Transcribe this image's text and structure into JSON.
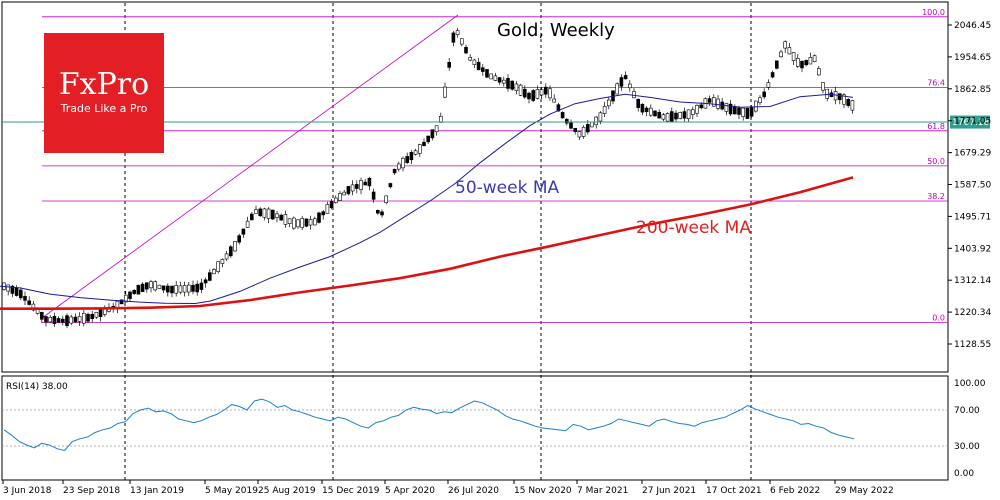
{
  "brand": {
    "name": "FxPro",
    "tagline": "Trade Like a Pro",
    "bg_color": "#e31e24",
    "text_color": "#ffffff"
  },
  "chart_data": {
    "type": "candlestick",
    "title": "Gold, Weekly",
    "x_labels": [
      "3 Jun 2018",
      "23 Sep 2018",
      "13 Jan 2019",
      "5 May 2019",
      "25 Aug 2019",
      "15 Dec 2019",
      "5 Apr 2020",
      "26 Jul 2020",
      "15 Nov 2020",
      "7 Mar 2021",
      "27 Jun 2021",
      "17 Oct 2021",
      "6 Feb 2022",
      "29 May 2022"
    ],
    "price_axis": {
      "ticks": [
        2046.45,
        1954.65,
        1862.85,
        1771.05,
        1679.29,
        1587.5,
        1495.71,
        1403.92,
        1312.14,
        1220.34,
        1128.55
      ],
      "tick_labels": [
        "2046.45",
        "1954.65",
        "1862.85",
        "1771.05",
        "1679.29",
        "1587.50",
        "1495.71",
        "1403.92",
        "1312.14",
        "1220.34",
        "1128.55"
      ],
      "range": [
        1060,
        2105
      ]
    },
    "current_price": {
      "value": 1767.18,
      "label": "1767.18",
      "color": "#2e9e8e"
    },
    "fibonacci": [
      {
        "label": "100.0",
        "value": 2070
      },
      {
        "label": "76.4",
        "value": 1867
      },
      {
        "label": "61.8",
        "value": 1742
      },
      {
        "label": "50.0",
        "value": 1641
      },
      {
        "label": "38.2",
        "value": 1540
      },
      {
        "label": "0.0",
        "value": 1190
      }
    ],
    "fib_color": "#c000c0",
    "annotations": [
      {
        "text": "50-week MA",
        "color": "#3a3ab0"
      },
      {
        "text": "200-week MA",
        "color": "#e02020"
      }
    ],
    "series": [
      {
        "name": "50-week MA",
        "color": "#1a1a9a",
        "points": [
          [
            0,
            1295
          ],
          [
            20,
            1290
          ],
          [
            50,
            1272
          ],
          [
            80,
            1262
          ],
          [
            110,
            1255
          ],
          [
            140,
            1249
          ],
          [
            165,
            1246
          ],
          [
            195,
            1245
          ],
          [
            210,
            1252
          ],
          [
            240,
            1280
          ],
          [
            270,
            1318
          ],
          [
            300,
            1350
          ],
          [
            330,
            1380
          ],
          [
            360,
            1420
          ],
          [
            380,
            1450
          ],
          [
            405,
            1495
          ],
          [
            430,
            1540
          ],
          [
            455,
            1590
          ],
          [
            480,
            1650
          ],
          [
            505,
            1705
          ],
          [
            530,
            1757
          ],
          [
            550,
            1790
          ],
          [
            575,
            1820
          ],
          [
            600,
            1835
          ],
          [
            625,
            1847
          ],
          [
            650,
            1838
          ],
          [
            680,
            1825
          ],
          [
            710,
            1820
          ],
          [
            740,
            1810
          ],
          [
            770,
            1812
          ],
          [
            800,
            1840
          ],
          [
            830,
            1847
          ],
          [
            853,
            1838
          ]
        ]
      },
      {
        "name": "200-week MA",
        "color": "#dd1111",
        "points": [
          [
            0,
            1230
          ],
          [
            50,
            1230
          ],
          [
            100,
            1231
          ],
          [
            150,
            1233
          ],
          [
            200,
            1238
          ],
          [
            250,
            1255
          ],
          [
            300,
            1277
          ],
          [
            350,
            1297
          ],
          [
            400,
            1318
          ],
          [
            450,
            1345
          ],
          [
            500,
            1380
          ],
          [
            550,
            1410
          ],
          [
            600,
            1442
          ],
          [
            650,
            1473
          ],
          [
            700,
            1500
          ],
          [
            750,
            1530
          ],
          [
            800,
            1565
          ],
          [
            853,
            1608
          ]
        ]
      }
    ],
    "rsi": {
      "label": "RSI(14) 38.00",
      "ticks": [
        100,
        70,
        30,
        0
      ],
      "tick_labels": [
        "100.00",
        "70.00",
        "30.00",
        "0.00"
      ],
      "color": "#1a7fd4",
      "values": [
        48,
        42,
        35,
        31,
        28,
        33,
        31,
        27,
        25,
        35,
        38,
        40,
        45,
        48,
        50,
        55,
        57,
        66,
        70,
        72,
        68,
        69,
        66,
        60,
        58,
        56,
        58,
        62,
        65,
        70,
        76,
        74,
        70,
        80,
        82,
        79,
        73,
        75,
        70,
        68,
        65,
        62,
        60,
        58,
        62,
        60,
        56,
        52,
        50,
        56,
        58,
        62,
        64,
        70,
        73,
        71,
        70,
        66,
        68,
        67,
        72,
        76,
        80,
        78,
        74,
        70,
        64,
        60,
        58,
        55,
        52,
        50,
        49,
        48,
        47,
        54,
        52,
        48,
        50,
        52,
        55,
        60,
        58,
        56,
        54,
        52,
        58,
        60,
        57,
        55,
        54,
        52,
        56,
        58,
        60,
        62,
        66,
        70,
        75,
        71,
        68,
        65,
        62,
        60,
        58,
        54,
        55,
        52,
        50,
        45,
        42,
        40,
        38
      ]
    }
  }
}
